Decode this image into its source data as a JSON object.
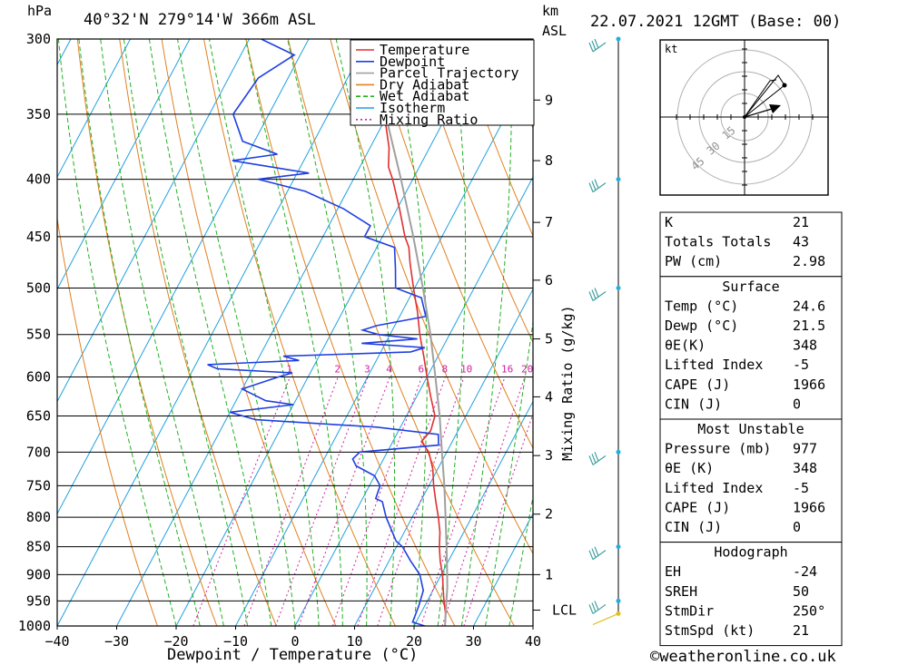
{
  "header": {
    "unit_hpa": "hPa",
    "location": "40°32'N 279°14'W 366m ASL",
    "unit_km": "km",
    "unit_asl": "ASL",
    "datetime": "22.07.2021 12GMT (Base: 00)"
  },
  "footer": {
    "xlabel": "Dewpoint / Temperature (°C)",
    "credit": "©weatheronline.co.uk"
  },
  "legend": [
    {
      "label": "Temperature",
      "color": "#e03030"
    },
    {
      "label": "Dewpoint",
      "color": "#2040e0"
    },
    {
      "label": "Parcel Trajectory",
      "color": "#a0a0a0"
    },
    {
      "label": "Dry Adiabat",
      "color": "#e08020"
    },
    {
      "label": "Wet Adiabat",
      "color": "#20b020"
    },
    {
      "label": "Isotherm",
      "color": "#20a0e0"
    },
    {
      "label": "Mixing Ratio",
      "color": "#d020a0"
    }
  ],
  "mixing_ratio_label": "Mixing Ratio (g/kg)",
  "lcl_label": "LCL",
  "hodograph": {
    "unit": "kt",
    "rings": [
      "15",
      "30",
      "45"
    ]
  },
  "indices": {
    "general": [
      {
        "label": "K",
        "value": "21"
      },
      {
        "label": "Totals Totals",
        "value": "43"
      },
      {
        "label": "PW (cm)",
        "value": "2.98"
      }
    ],
    "surface_title": "Surface",
    "surface": [
      {
        "label": "Temp (°C)",
        "value": "24.6"
      },
      {
        "label": "Dewp (°C)",
        "value": "21.5"
      },
      {
        "label": "θE(K)",
        "value": "348"
      },
      {
        "label": "Lifted Index",
        "value": "-5"
      },
      {
        "label": "CAPE (J)",
        "value": "1966"
      },
      {
        "label": "CIN (J)",
        "value": "0"
      }
    ],
    "unstable_title": "Most Unstable",
    "unstable": [
      {
        "label": "Pressure (mb)",
        "value": "977"
      },
      {
        "label": "θE (K)",
        "value": "348"
      },
      {
        "label": "Lifted Index",
        "value": "-5"
      },
      {
        "label": "CAPE (J)",
        "value": "1966"
      },
      {
        "label": "CIN (J)",
        "value": "0"
      }
    ],
    "hodo_title": "Hodograph",
    "hodo": [
      {
        "label": "EH",
        "value": "-24"
      },
      {
        "label": "SREH",
        "value": "50"
      },
      {
        "label": "StmDir",
        "value": "250°"
      },
      {
        "label": "StmSpd (kt)",
        "value": "21"
      }
    ]
  },
  "chart_data": {
    "type": "line",
    "title": "40°32'N 279°14'W 366m ASL",
    "xlabel": "Dewpoint / Temperature (°C)",
    "ylabel": "hPa",
    "xlim": [
      -40,
      40
    ],
    "ylim": [
      1000,
      300
    ],
    "y_scale": "log",
    "pressure_ticks": [
      "300",
      "350",
      "400",
      "450",
      "500",
      "550",
      "600",
      "650",
      "700",
      "750",
      "800",
      "850",
      "900",
      "950",
      "1000"
    ],
    "temp_ticks": [
      "−40",
      "−30",
      "−20",
      "−10",
      "0",
      "10",
      "20",
      "30",
      "40"
    ],
    "height_ticks_km": [
      "1",
      "2",
      "3",
      "4",
      "5",
      "6",
      "7",
      "8",
      "9"
    ],
    "height_tick_pressures": [
      900,
      795,
      705,
      625,
      555,
      492,
      437,
      385,
      340
    ],
    "mixing_ratio_values": [
      "1",
      "2",
      "3",
      "4",
      "6",
      "8",
      "10",
      "16",
      "20",
      "25"
    ],
    "skew_deg_per_decade": 100,
    "series": [
      {
        "name": "Temperature",
        "color": "#e03030",
        "points": [
          [
            1000,
            25.2
          ],
          [
            975,
            24.2
          ],
          [
            950,
            22.8
          ],
          [
            925,
            21.5
          ],
          [
            900,
            20.2
          ],
          [
            875,
            18.6
          ],
          [
            850,
            17.2
          ],
          [
            825,
            16.0
          ],
          [
            800,
            14.4
          ],
          [
            775,
            12.6
          ],
          [
            750,
            10.8
          ],
          [
            725,
            9.2
          ],
          [
            700,
            7.0
          ],
          [
            685,
            4.8
          ],
          [
            670,
            5.4
          ],
          [
            650,
            4.8
          ],
          [
            625,
            2.4
          ],
          [
            600,
            0.0
          ],
          [
            575,
            -2.4
          ],
          [
            550,
            -5.0
          ],
          [
            525,
            -7.4
          ],
          [
            500,
            -10.2
          ],
          [
            475,
            -13.0
          ],
          [
            460,
            -14.6
          ],
          [
            450,
            -16.2
          ],
          [
            425,
            -19.6
          ],
          [
            400,
            -23.4
          ],
          [
            390,
            -25.2
          ],
          [
            375,
            -26.8
          ],
          [
            350,
            -30.6
          ],
          [
            325,
            -35.2
          ],
          [
            300,
            -40.2
          ]
        ]
      },
      {
        "name": "Dewpoint",
        "color": "#2040e0",
        "points": [
          [
            1000,
            21.8
          ],
          [
            992,
            19.4
          ],
          [
            960,
            19.0
          ],
          [
            930,
            18.4
          ],
          [
            900,
            16.4
          ],
          [
            875,
            13.6
          ],
          [
            850,
            11.0
          ],
          [
            840,
            9.4
          ],
          [
            800,
            5.6
          ],
          [
            775,
            3.6
          ],
          [
            770,
            2.2
          ],
          [
            750,
            1.8
          ],
          [
            735,
            0.0
          ],
          [
            720,
            -4.0
          ],
          [
            710,
            -5.2
          ],
          [
            700,
            -4.6
          ],
          [
            690,
            8.0
          ],
          [
            675,
            7.0
          ],
          [
            665,
            -4.0
          ],
          [
            655,
            -25.0
          ],
          [
            645,
            -30.0
          ],
          [
            635,
            -20.0
          ],
          [
            630,
            -25.0
          ],
          [
            615,
            -30.0
          ],
          [
            600,
            -25.0
          ],
          [
            595,
            -23.0
          ],
          [
            590,
            -36.0
          ],
          [
            585,
            -38.0
          ],
          [
            580,
            -23.0
          ],
          [
            575,
            -26.0
          ],
          [
            570,
            -5.0
          ],
          [
            565,
            -3.0
          ],
          [
            560,
            -14.0
          ],
          [
            555,
            -5.0
          ],
          [
            550,
            -12.0
          ],
          [
            545,
            -15.0
          ],
          [
            540,
            -13.0
          ],
          [
            530,
            -5.6
          ],
          [
            510,
            -8.0
          ],
          [
            500,
            -13.2
          ],
          [
            480,
            -15.0
          ],
          [
            460,
            -17.0
          ],
          [
            450,
            -23.0
          ],
          [
            440,
            -23.0
          ],
          [
            425,
            -29.0
          ],
          [
            410,
            -37.0
          ],
          [
            400,
            -46.0
          ],
          [
            395,
            -38.0
          ],
          [
            385,
            -52.0
          ],
          [
            380,
            -45.0
          ],
          [
            370,
            -52.0
          ],
          [
            350,
            -56.0
          ],
          [
            325,
            -55.0
          ],
          [
            310,
            -51.0
          ],
          [
            300,
            -58.0
          ]
        ]
      },
      {
        "name": "Parcel Trajectory",
        "color": "#a0a0a0",
        "points": [
          [
            1000,
            25.2
          ],
          [
            950,
            23.2
          ],
          [
            925,
            22.2
          ],
          [
            900,
            21.0
          ],
          [
            850,
            18.4
          ],
          [
            800,
            15.6
          ],
          [
            750,
            12.6
          ],
          [
            700,
            9.2
          ],
          [
            650,
            5.6
          ],
          [
            600,
            1.4
          ],
          [
            550,
            -3.2
          ],
          [
            500,
            -8.6
          ],
          [
            450,
            -14.8
          ],
          [
            400,
            -22.0
          ],
          [
            350,
            -30.4
          ]
        ]
      }
    ]
  }
}
